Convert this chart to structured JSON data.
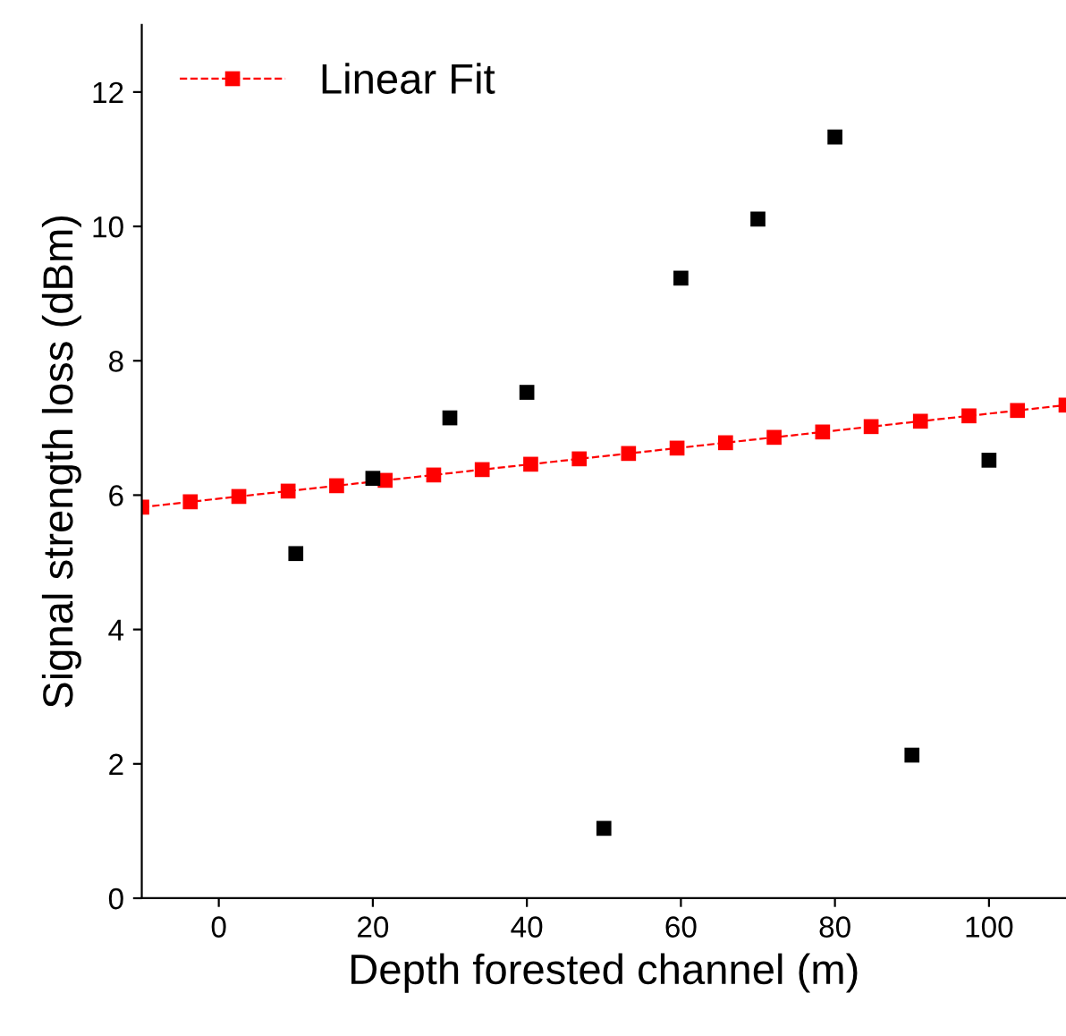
{
  "chart_data": {
    "type": "scatter",
    "xlabel": "Depth forested channel (m)",
    "ylabel": "Signal strength loss (dBm)",
    "xlim": [
      -10,
      110
    ],
    "ylim": [
      0,
      13
    ],
    "xticks": [
      0,
      20,
      40,
      60,
      80,
      100
    ],
    "yticks": [
      0,
      2,
      4,
      6,
      8,
      10,
      12
    ],
    "grid": false,
    "legend": "top left",
    "marker": "square",
    "series": [
      {
        "color": "#000000",
        "x": [
          10,
          20,
          30,
          40,
          50,
          60,
          70,
          80,
          90,
          100
        ],
        "values": [
          5.13,
          6.25,
          7.15,
          7.53,
          1.04,
          9.23,
          10.11,
          11.33,
          2.13,
          6.52
        ]
      },
      {
        "name": "Linear Fit",
        "type": "line",
        "color": "#ff0000",
        "line_style": "dashed",
        "x": [
          -10,
          -3.7,
          2.6,
          9.0,
          15.3,
          21.6,
          27.9,
          34.2,
          40.5,
          46.8,
          53.2,
          59.5,
          65.8,
          72.1,
          78.4,
          84.7,
          91.1,
          97.4,
          103.7,
          110
        ],
        "values": [
          5.82,
          5.9,
          5.98,
          6.06,
          6.14,
          6.22,
          6.3,
          6.38,
          6.46,
          6.54,
          6.62,
          6.7,
          6.78,
          6.86,
          6.94,
          7.02,
          7.1,
          7.18,
          7.26,
          7.34
        ]
      }
    ]
  }
}
